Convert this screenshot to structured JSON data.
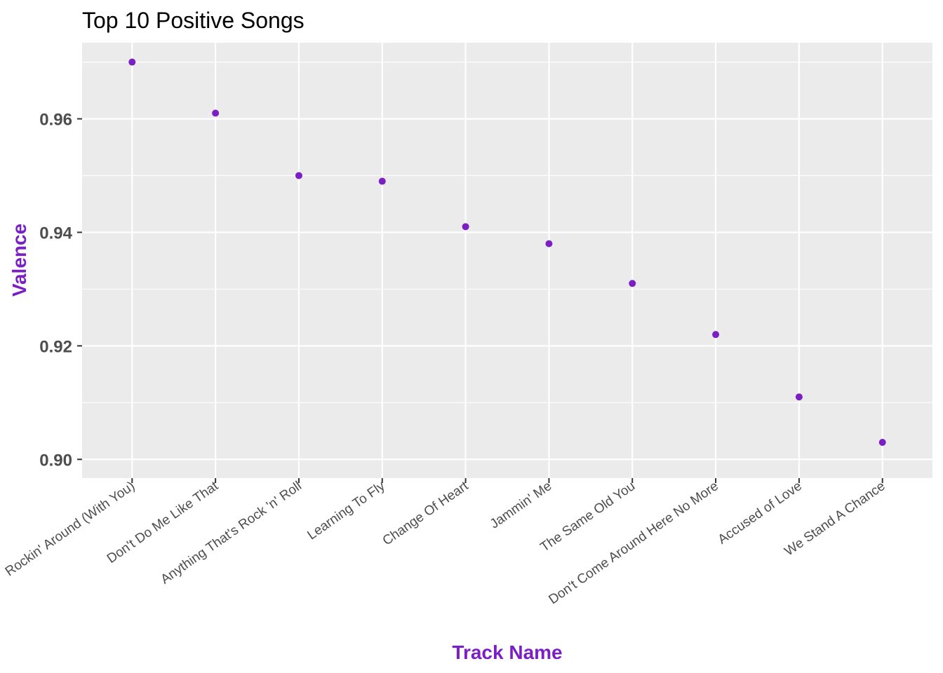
{
  "chart_data": {
    "type": "scatter",
    "title": "Top 10 Positive Songs",
    "xlabel": "Track Name",
    "ylabel": "Valence",
    "categories": [
      "Rockin' Around (With You)",
      "Don't Do Me Like That",
      "Anything That's Rock 'n' Roll",
      "Learning To Fly",
      "Change Of Heart",
      "Jammin' Me",
      "The Same Old You",
      "Don't Come Around Here No More",
      "Accused of Love",
      "We Stand A Chance"
    ],
    "values": [
      0.97,
      0.961,
      0.95,
      0.949,
      0.941,
      0.938,
      0.931,
      0.922,
      0.911,
      0.903
    ],
    "ylim": [
      0.8967,
      0.9734
    ],
    "yticks": [
      0.9,
      0.92,
      0.94,
      0.96
    ],
    "ytick_labels": [
      "0.90",
      "0.92",
      "0.94",
      "0.96"
    ],
    "grid": true,
    "legend": "none",
    "colors": {
      "point": "#7b1fc4",
      "axis_title": "#7b1fc4",
      "panel": "#ebebeb",
      "grid": "#ffffff"
    }
  }
}
